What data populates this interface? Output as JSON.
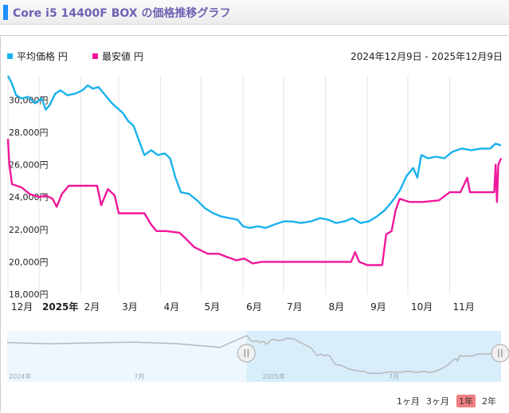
{
  "page": {
    "title": "Core i5 14400F BOX の価格推移グラフ"
  },
  "colors": {
    "avg": "#1ab2ec",
    "min": "#f0179b",
    "accent": "#1e90ff",
    "title": "#6d63b4",
    "navigator_fill": "#e1f1fb",
    "active_zoom": "#f08080"
  },
  "chart_data": {
    "type": "line",
    "date_range_label": "2024年12月9日 - 2025年12月9日",
    "x_start": "2024-12-09",
    "x_end": "2025-12-09",
    "ylim": [
      18000,
      31500
    ],
    "yticks": [
      {
        "value": 18000,
        "label": "18,000円"
      },
      {
        "value": 20000,
        "label": "20,000円"
      },
      {
        "value": 22000,
        "label": "22,000円"
      },
      {
        "value": 24000,
        "label": "24,000円"
      },
      {
        "value": 26000,
        "label": "26,000円"
      },
      {
        "value": 28000,
        "label": "28,000円"
      },
      {
        "value": 30000,
        "label": "30,000円"
      }
    ],
    "xticks": [
      {
        "date": "2024-12-01",
        "label": "12月",
        "bold": false
      },
      {
        "date": "2025-01-01",
        "label": "2025年",
        "bold": true
      },
      {
        "date": "2025-02-01",
        "label": "2月",
        "bold": false
      },
      {
        "date": "2025-03-01",
        "label": "3月",
        "bold": false
      },
      {
        "date": "2025-04-01",
        "label": "4月",
        "bold": false
      },
      {
        "date": "2025-05-01",
        "label": "5月",
        "bold": false
      },
      {
        "date": "2025-06-01",
        "label": "6月",
        "bold": false
      },
      {
        "date": "2025-07-01",
        "label": "7月",
        "bold": false
      },
      {
        "date": "2025-08-01",
        "label": "8月",
        "bold": false
      },
      {
        "date": "2025-09-01",
        "label": "9月",
        "bold": false
      },
      {
        "date": "2025-10-01",
        "label": "10月",
        "bold": false
      },
      {
        "date": "2025-11-01",
        "label": "11月",
        "bold": false
      }
    ],
    "series": [
      {
        "name": "平均価格 円",
        "color": "#1ab2ec",
        "points": [
          [
            "2024-12-09",
            31500
          ],
          [
            "2024-12-12",
            31000
          ],
          [
            "2024-12-15",
            30300
          ],
          [
            "2024-12-19",
            30100
          ],
          [
            "2024-12-24",
            30200
          ],
          [
            "2024-12-29",
            29800
          ],
          [
            "2025-01-03",
            30100
          ],
          [
            "2025-01-06",
            29400
          ],
          [
            "2025-01-09",
            29700
          ],
          [
            "2025-01-13",
            30400
          ],
          [
            "2025-01-17",
            30600
          ],
          [
            "2025-01-22",
            30300
          ],
          [
            "2025-01-28",
            30400
          ],
          [
            "2025-02-02",
            30600
          ],
          [
            "2025-02-06",
            30900
          ],
          [
            "2025-02-10",
            30700
          ],
          [
            "2025-02-14",
            30800
          ],
          [
            "2025-02-19",
            30300
          ],
          [
            "2025-02-24",
            29800
          ],
          [
            "2025-02-28",
            29500
          ],
          [
            "2025-03-04",
            29200
          ],
          [
            "2025-03-08",
            28700
          ],
          [
            "2025-03-12",
            28400
          ],
          [
            "2025-03-16",
            27500
          ],
          [
            "2025-03-20",
            26600
          ],
          [
            "2025-03-25",
            26900
          ],
          [
            "2025-03-30",
            26600
          ],
          [
            "2025-04-04",
            26700
          ],
          [
            "2025-04-08",
            26400
          ],
          [
            "2025-04-12",
            25200
          ],
          [
            "2025-04-16",
            24300
          ],
          [
            "2025-04-22",
            24200
          ],
          [
            "2025-04-28",
            23800
          ],
          [
            "2025-05-04",
            23300
          ],
          [
            "2025-05-10",
            23000
          ],
          [
            "2025-05-16",
            22800
          ],
          [
            "2025-05-22",
            22700
          ],
          [
            "2025-05-28",
            22600
          ],
          [
            "2025-06-01",
            22200
          ],
          [
            "2025-06-06",
            22100
          ],
          [
            "2025-06-12",
            22200
          ],
          [
            "2025-06-18",
            22100
          ],
          [
            "2025-06-24",
            22300
          ],
          [
            "2025-07-01",
            22500
          ],
          [
            "2025-07-07",
            22500
          ],
          [
            "2025-07-14",
            22400
          ],
          [
            "2025-07-21",
            22500
          ],
          [
            "2025-07-28",
            22700
          ],
          [
            "2025-08-03",
            22600
          ],
          [
            "2025-08-09",
            22400
          ],
          [
            "2025-08-15",
            22500
          ],
          [
            "2025-08-21",
            22700
          ],
          [
            "2025-08-27",
            22400
          ],
          [
            "2025-09-02",
            22500
          ],
          [
            "2025-09-08",
            22800
          ],
          [
            "2025-09-14",
            23200
          ],
          [
            "2025-09-20",
            23800
          ],
          [
            "2025-09-25",
            24400
          ],
          [
            "2025-09-30",
            25300
          ],
          [
            "2025-10-05",
            25800
          ],
          [
            "2025-10-08",
            25200
          ],
          [
            "2025-10-11",
            26600
          ],
          [
            "2025-10-16",
            26400
          ],
          [
            "2025-10-22",
            26500
          ],
          [
            "2025-10-28",
            26400
          ],
          [
            "2025-11-03",
            26800
          ],
          [
            "2025-11-10",
            27000
          ],
          [
            "2025-11-17",
            26900
          ],
          [
            "2025-11-24",
            27000
          ],
          [
            "2025-12-01",
            27000
          ],
          [
            "2025-12-05",
            27300
          ],
          [
            "2025-12-09",
            27200
          ]
        ]
      },
      {
        "name": "最安値 円",
        "color": "#f0179b",
        "points": [
          [
            "2024-12-09",
            27600
          ],
          [
            "2024-12-10",
            26000
          ],
          [
            "2024-12-12",
            24800
          ],
          [
            "2024-12-19",
            24600
          ],
          [
            "2024-12-25",
            24200
          ],
          [
            "2025-01-01",
            24000
          ],
          [
            "2025-01-06",
            24100
          ],
          [
            "2025-01-11",
            23900
          ],
          [
            "2025-01-14",
            23400
          ],
          [
            "2025-01-18",
            24200
          ],
          [
            "2025-01-23",
            24700
          ],
          [
            "2025-01-31",
            24700
          ],
          [
            "2025-02-07",
            24700
          ],
          [
            "2025-02-13",
            24700
          ],
          [
            "2025-02-16",
            23500
          ],
          [
            "2025-02-21",
            24500
          ],
          [
            "2025-02-26",
            24100
          ],
          [
            "2025-03-01",
            23000
          ],
          [
            "2025-03-10",
            23000
          ],
          [
            "2025-03-20",
            23000
          ],
          [
            "2025-03-25",
            22300
          ],
          [
            "2025-03-29",
            21900
          ],
          [
            "2025-04-05",
            21900
          ],
          [
            "2025-04-15",
            21800
          ],
          [
            "2025-04-20",
            21400
          ],
          [
            "2025-04-26",
            20900
          ],
          [
            "2025-05-01",
            20700
          ],
          [
            "2025-05-06",
            20500
          ],
          [
            "2025-05-14",
            20500
          ],
          [
            "2025-05-20",
            20300
          ],
          [
            "2025-05-27",
            20100
          ],
          [
            "2025-06-02",
            20200
          ],
          [
            "2025-06-08",
            19900
          ],
          [
            "2025-06-15",
            20000
          ],
          [
            "2025-06-25",
            20000
          ],
          [
            "2025-07-05",
            20000
          ],
          [
            "2025-07-15",
            20000
          ],
          [
            "2025-07-25",
            20000
          ],
          [
            "2025-08-05",
            20000
          ],
          [
            "2025-08-15",
            20000
          ],
          [
            "2025-08-20",
            20000
          ],
          [
            "2025-08-23",
            20600
          ],
          [
            "2025-08-26",
            20000
          ],
          [
            "2025-09-01",
            19800
          ],
          [
            "2025-09-08",
            19800
          ],
          [
            "2025-09-12",
            19800
          ],
          [
            "2025-09-15",
            21700
          ],
          [
            "2025-09-19",
            21900
          ],
          [
            "2025-09-22",
            23200
          ],
          [
            "2025-09-25",
            23900
          ],
          [
            "2025-10-02",
            23700
          ],
          [
            "2025-10-12",
            23700
          ],
          [
            "2025-10-24",
            23800
          ],
          [
            "2025-11-01",
            24300
          ],
          [
            "2025-11-09",
            24300
          ],
          [
            "2025-11-14",
            25200
          ],
          [
            "2025-11-16",
            24300
          ],
          [
            "2025-11-30",
            24300
          ],
          [
            "2025-12-04",
            24300
          ],
          [
            "2025-12-05",
            26000
          ],
          [
            "2025-12-06",
            23700
          ],
          [
            "2025-12-07",
            26000
          ],
          [
            "2025-12-09",
            26400
          ]
        ]
      }
    ]
  },
  "navigator": {
    "labels": [
      {
        "date": "2024-01-01",
        "label": "2024年"
      },
      {
        "date": "2024-07-01",
        "label": "7月"
      },
      {
        "date": "2025-01-01",
        "label": "2025年"
      },
      {
        "date": "2025-07-01",
        "label": "7月"
      }
    ],
    "window_start": "2024-12-09",
    "window_end": "2025-12-09"
  },
  "zoom_buttons": [
    {
      "label": "1ヶ月",
      "active": false
    },
    {
      "label": "3ヶ月",
      "active": false
    },
    {
      "label": "1年",
      "active": true
    },
    {
      "label": "2年",
      "active": false
    }
  ]
}
